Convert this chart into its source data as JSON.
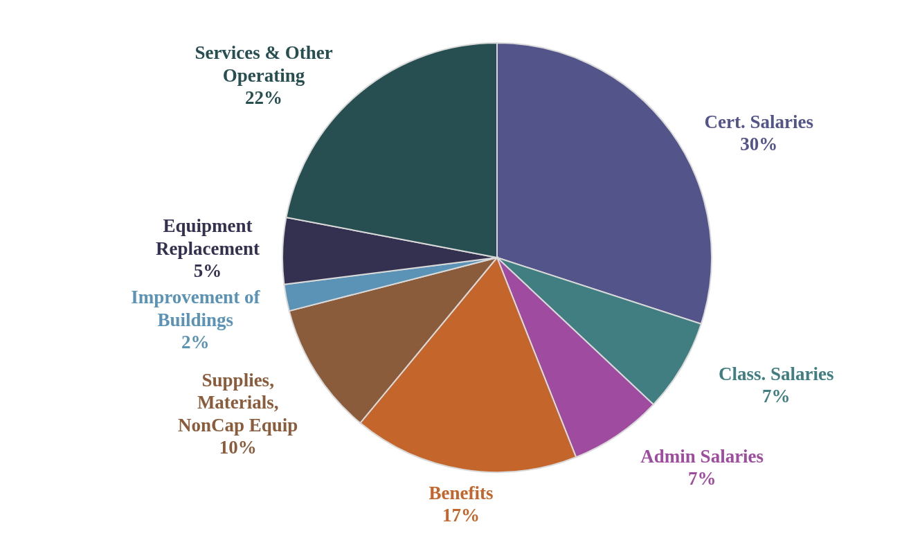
{
  "chart_data": {
    "type": "pie",
    "categories": [
      "Cert. Salaries",
      "Class. Salaries",
      "Admin Salaries",
      "Benefits",
      "Supplies, Materials, NonCap Equip",
      "Improvement of Buildings",
      "Equipment Replacement",
      "Services & Other Operating"
    ],
    "values": [
      30,
      7,
      7,
      17,
      10,
      2,
      5,
      22
    ],
    "colors": [
      "#53548a",
      "#417e81",
      "#9f4ba0",
      "#c4652c",
      "#8b5c3b",
      "#5a93b5",
      "#33314f",
      "#274e50"
    ],
    "value_labels": [
      "30%",
      "7%",
      "7%",
      "17%",
      "10%",
      "2%",
      "5%",
      "22%"
    ]
  }
}
